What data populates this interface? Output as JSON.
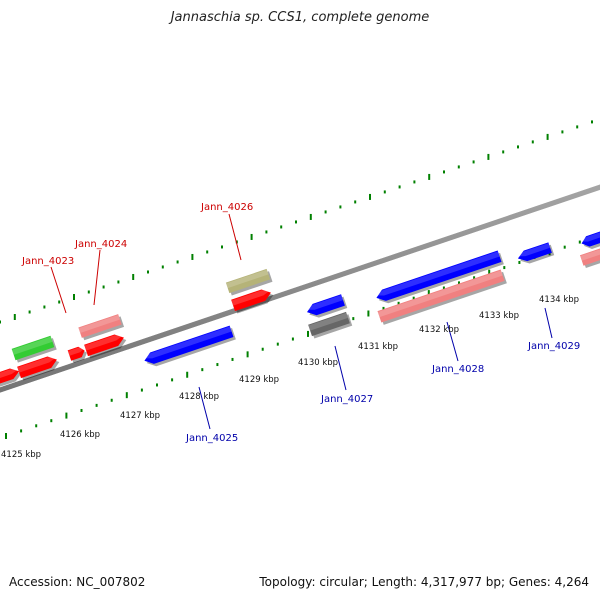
{
  "header": {
    "title": "Jannaschia sp. CCS1, complete genome"
  },
  "footer": {
    "accession": "Accession: NC_007802",
    "summary": "Topology: circular; Length: 4,317,977 bp; Genes: 4,264"
  },
  "colors": {
    "backbone": "#8a8a8a",
    "ticks": "#008000",
    "forward_label": "#cc0000",
    "reverse_label": "#0000aa",
    "scale_label": "#111111"
  },
  "scale_labels": [
    "4125 kbp",
    "4126 kbp",
    "4127 kbp",
    "4128 kbp",
    "4129 kbp",
    "4130 kbp",
    "4131 kbp",
    "4132 kbp",
    "4133 kbp",
    "4134 kbp"
  ],
  "gene_labels": [
    {
      "text": "Jann_4023",
      "strand": "forward"
    },
    {
      "text": "Jann_4024",
      "strand": "forward"
    },
    {
      "text": "Jann_4026",
      "strand": "forward"
    },
    {
      "text": "Jann_4025",
      "strand": "reverse"
    },
    {
      "text": "Jann_4027",
      "strand": "reverse"
    },
    {
      "text": "Jann_4028",
      "strand": "reverse"
    },
    {
      "text": "Jann_4029",
      "strand": "reverse"
    }
  ],
  "features": [
    {
      "name": "fwd-cds-1",
      "color": "#ff0000"
    },
    {
      "name": "fwd-cds-2",
      "color": "#ff0000"
    },
    {
      "name": "fwd-cds-3",
      "color": "#ff0000"
    },
    {
      "name": "fwd-cds-4",
      "color": "#ff0000"
    },
    {
      "name": "fwd-cds-5",
      "color": "#ff0000"
    },
    {
      "name": "fwd-rna",
      "color": "#33cc33"
    },
    {
      "name": "fwd-pseudo-1",
      "color": "#f08080"
    },
    {
      "name": "fwd-other",
      "color": "#b5b378"
    },
    {
      "name": "rev-cds-1",
      "color": "#0000ff"
    },
    {
      "name": "rev-cds-2",
      "color": "#0000ff"
    },
    {
      "name": "rev-cds-3",
      "color": "#0000ff"
    },
    {
      "name": "rev-cds-4",
      "color": "#0000ff"
    },
    {
      "name": "rev-cds-5",
      "color": "#0000ff"
    },
    {
      "name": "rev-other",
      "color": "#666666"
    },
    {
      "name": "rev-pseudo-1",
      "color": "#f08080"
    },
    {
      "name": "rev-pseudo-2",
      "color": "#f08080"
    }
  ]
}
